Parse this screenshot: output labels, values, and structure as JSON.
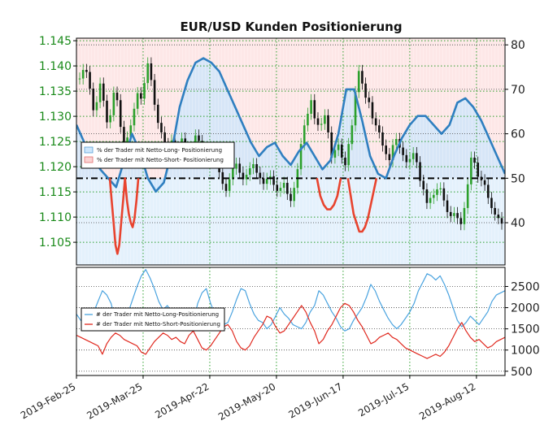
{
  "chart_data": [
    {
      "type": "line",
      "title": "EUR/USD Kunden Positionierung",
      "left_axis": {
        "ticks": [
          "1.145",
          "1.140",
          "1.135",
          "1.130",
          "1.125",
          "1.120",
          "1.115",
          "1.110",
          "1.105"
        ],
        "tick_values": [
          1.145,
          1.14,
          1.135,
          1.13,
          1.125,
          1.12,
          1.115,
          1.11,
          1.105
        ],
        "range": [
          1.1005,
          1.1455
        ],
        "color": "#1a8a1a"
      },
      "right_axis": {
        "ticks": [
          "80",
          "70",
          "60",
          "50",
          "40"
        ],
        "tick_values": [
          80,
          70,
          60,
          50,
          40
        ],
        "range": [
          30.5,
          81.5
        ],
        "reference_line": 50
      },
      "x_ticks": [
        "2019-Feb-25",
        "2019-Mar-25",
        "2019-Apr-22",
        "2019-May-20",
        "2019-Jun-17",
        "2019-Jul-15",
        "2019-Aug-12"
      ],
      "x_tick_days": [
        0,
        28,
        56,
        84,
        112,
        140,
        168
      ],
      "x_range": [
        0,
        180
      ],
      "legend": {
        "long": "% der Trader mit Netto-Long- Positionierung",
        "short": "% der Trader mit Netto-Short- Positionierung"
      },
      "candles": [
        1.1375,
        1.1392,
        1.1388,
        1.1355,
        1.1312,
        1.1328,
        1.1365,
        1.1331,
        1.1288,
        1.1302,
        1.1347,
        1.1332,
        1.1279,
        1.1239,
        1.1258,
        1.1282,
        1.1315,
        1.1346,
        1.1335,
        1.1366,
        1.1405,
        1.1372,
        1.1323,
        1.1287,
        1.1268,
        1.1245,
        1.1233,
        1.1252,
        1.1238,
        1.1224,
        1.1256,
        1.1232,
        1.1221,
        1.1238,
        1.1262,
        1.1251,
        1.1232,
        1.1214,
        1.1228,
        1.1235,
        1.1226,
        1.1189,
        1.1166,
        1.1152,
        1.1175,
        1.1196,
        1.1206,
        1.1188,
        1.1175,
        1.1184,
        1.1197,
        1.1205,
        1.1188,
        1.1177,
        1.1166,
        1.1176,
        1.1181,
        1.1164,
        1.1152,
        1.1158,
        1.1168,
        1.1146,
        1.1132,
        1.1158,
        1.1195,
        1.1245,
        1.1282,
        1.1305,
        1.1332,
        1.1296,
        1.1283,
        1.1285,
        1.1302,
        1.1268,
        1.1218,
        1.1233,
        1.1244,
        1.1218,
        1.1203,
        1.1245,
        1.1282,
        1.1348,
        1.139,
        1.1365,
        1.1337,
        1.1328,
        1.1296,
        1.1282,
        1.1268,
        1.1242,
        1.1225,
        1.1213,
        1.1243,
        1.1255,
        1.1238,
        1.1223,
        1.1209,
        1.1215,
        1.1227,
        1.1209,
        1.1172,
        1.1155,
        1.1128,
        1.1138,
        1.1144,
        1.1155,
        1.1157,
        1.1133,
        1.111,
        1.1102,
        1.1108,
        1.1098,
        1.1086,
        1.1118,
        1.1165,
        1.1218,
        1.1208,
        1.118,
        1.1173,
        1.1164,
        1.1138,
        1.1118,
        1.1105,
        1.1098,
        1.1087
      ],
      "sentiment_long": [
        62,
        58,
        55,
        52,
        50,
        48,
        54,
        60,
        56,
        50,
        47,
        49,
        56,
        66,
        72,
        76,
        77,
        76,
        74,
        70,
        66,
        62,
        58,
        55,
        57,
        58,
        55,
        53,
        56,
        58,
        55,
        52,
        54,
        60,
        70,
        70,
        63,
        55,
        51,
        50,
        55,
        59,
        62,
        64,
        64,
        62,
        60,
        62,
        67,
        68,
        66,
        63,
        59,
        55,
        51
      ],
      "sentiment_short": [
        50,
        45,
        40,
        35,
        33,
        35,
        40,
        45,
        50,
        45,
        42,
        40,
        39,
        41,
        45,
        50
      ],
      "sentiment_short_2": [
        50,
        46,
        44,
        43,
        43,
        44,
        46,
        50
      ],
      "sentiment_short_3": [
        50,
        46,
        42,
        40,
        38,
        38,
        39,
        41,
        44,
        47,
        50
      ]
    },
    {
      "type": "line",
      "right_axis": {
        "ticks": [
          "2500",
          "2000",
          "1500",
          "1000",
          "500"
        ],
        "tick_values": [
          2500,
          2000,
          1500,
          1000,
          500
        ],
        "range": [
          400,
          2950
        ]
      },
      "legend": {
        "long": "# der Trader mit Netto-Long-Positionierung",
        "short": "# der Trader mit Netto-Short-Positionierung"
      },
      "series": [
        {
          "name": "# der Trader mit Netto-Long-Positionierung",
          "color": "#4aa3df",
          "values": [
            1850,
            1700,
            1650,
            1800,
            1900,
            2150,
            2400,
            2300,
            2100,
            1700,
            1650,
            1750,
            1900,
            2200,
            2500,
            2750,
            2900,
            2700,
            2450,
            2150,
            1950,
            2050,
            1900,
            1750,
            1850,
            1950,
            1700,
            1650,
            2100,
            2350,
            2450,
            2100,
            1850,
            1700,
            1600,
            1650,
            1900,
            2200,
            2450,
            2400,
            2100,
            1850,
            1700,
            1650,
            1500,
            1600,
            1800,
            2000,
            1850,
            1750,
            1600,
            1550,
            1500,
            1650,
            1900,
            2050,
            2400,
            2300,
            2100,
            1900,
            1750,
            1550,
            1450,
            1500,
            1700,
            1850,
            2000,
            2250,
            2550,
            2400,
            2150,
            1950,
            1750,
            1600,
            1500,
            1600,
            1750,
            1900,
            2100,
            2400,
            2600,
            2800,
            2750,
            2650,
            2750,
            2550,
            2300,
            2000,
            1700,
            1550,
            1650,
            1800,
            1700,
            1600,
            1750,
            1900,
            2150,
            2300,
            2350,
            2400
          ]
        },
        {
          "name": "# der Trader mit Netto-Short-Positionierung",
          "color": "#e0281e",
          "values": [
            1350,
            1300,
            1250,
            1200,
            1150,
            1100,
            900,
            1150,
            1300,
            1400,
            1350,
            1250,
            1200,
            1150,
            1100,
            950,
            900,
            1050,
            1200,
            1300,
            1400,
            1350,
            1250,
            1300,
            1200,
            1150,
            1350,
            1450,
            1250,
            1050,
            1000,
            1100,
            1250,
            1400,
            1550,
            1600,
            1450,
            1200,
            1050,
            1000,
            1100,
            1300,
            1450,
            1600,
            1800,
            1750,
            1550,
            1400,
            1450,
            1600,
            1750,
            1900,
            2050,
            1900,
            1650,
            1450,
            1150,
            1250,
            1450,
            1600,
            1800,
            2000,
            2100,
            2050,
            1900,
            1700,
            1550,
            1350,
            1150,
            1200,
            1300,
            1350,
            1400,
            1300,
            1250,
            1150,
            1050,
            1000,
            950,
            900,
            850,
            800,
            850,
            900,
            850,
            950,
            1100,
            1300,
            1500,
            1650,
            1450,
            1300,
            1200,
            1250,
            1150,
            1050,
            1100,
            1200,
            1250,
            1300
          ]
        }
      ]
    }
  ]
}
